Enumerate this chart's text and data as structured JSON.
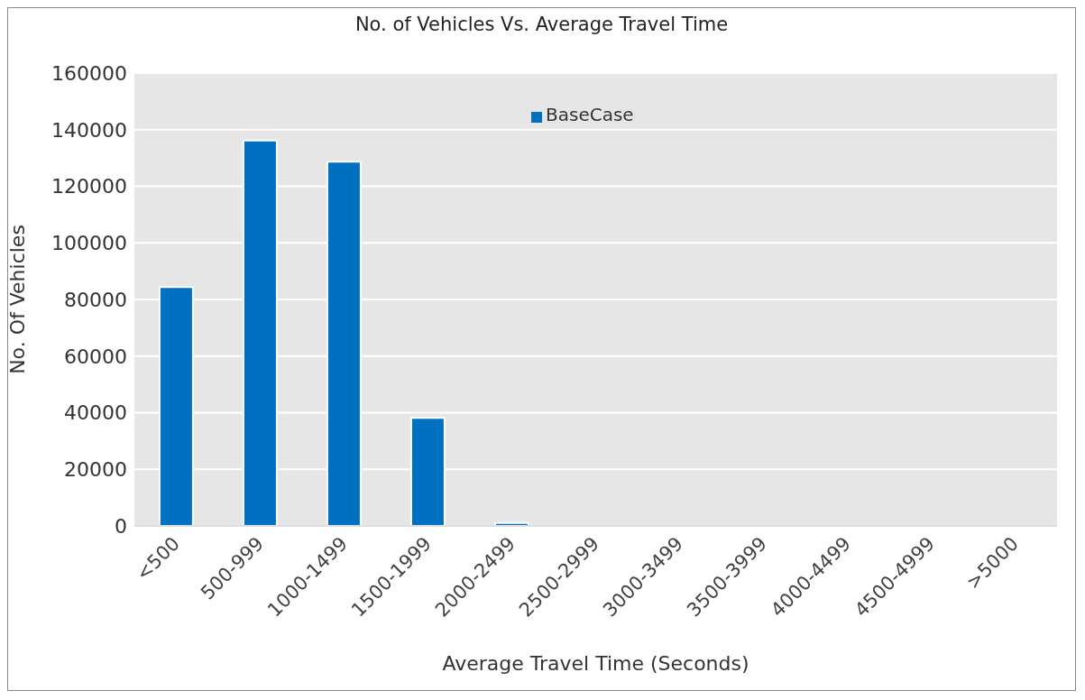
{
  "chart_data": {
    "type": "bar",
    "title": "No. of Vehicles Vs. Average Travel Time",
    "xlabel": "Average Travel Time (Seconds)",
    "ylabel": "No. Of Vehicles",
    "categories": [
      "<500",
      "500-999",
      "1000-1499",
      "1500-1999",
      "2000-2499",
      "2500-2999",
      "3000-3499",
      "3500-3999",
      "4000-4499",
      "4500-4999",
      ">5000"
    ],
    "series": [
      {
        "name": "BaseCase",
        "color": "#0070c0",
        "values": [
          84400,
          136200,
          128700,
          38200,
          1000,
          null,
          0,
          0,
          0,
          0,
          0
        ]
      }
    ],
    "ylim": [
      0,
      160000
    ],
    "yticks": [
      0,
      20000,
      40000,
      60000,
      80000,
      100000,
      120000,
      140000,
      160000
    ],
    "grid": "y",
    "legend": "top"
  }
}
